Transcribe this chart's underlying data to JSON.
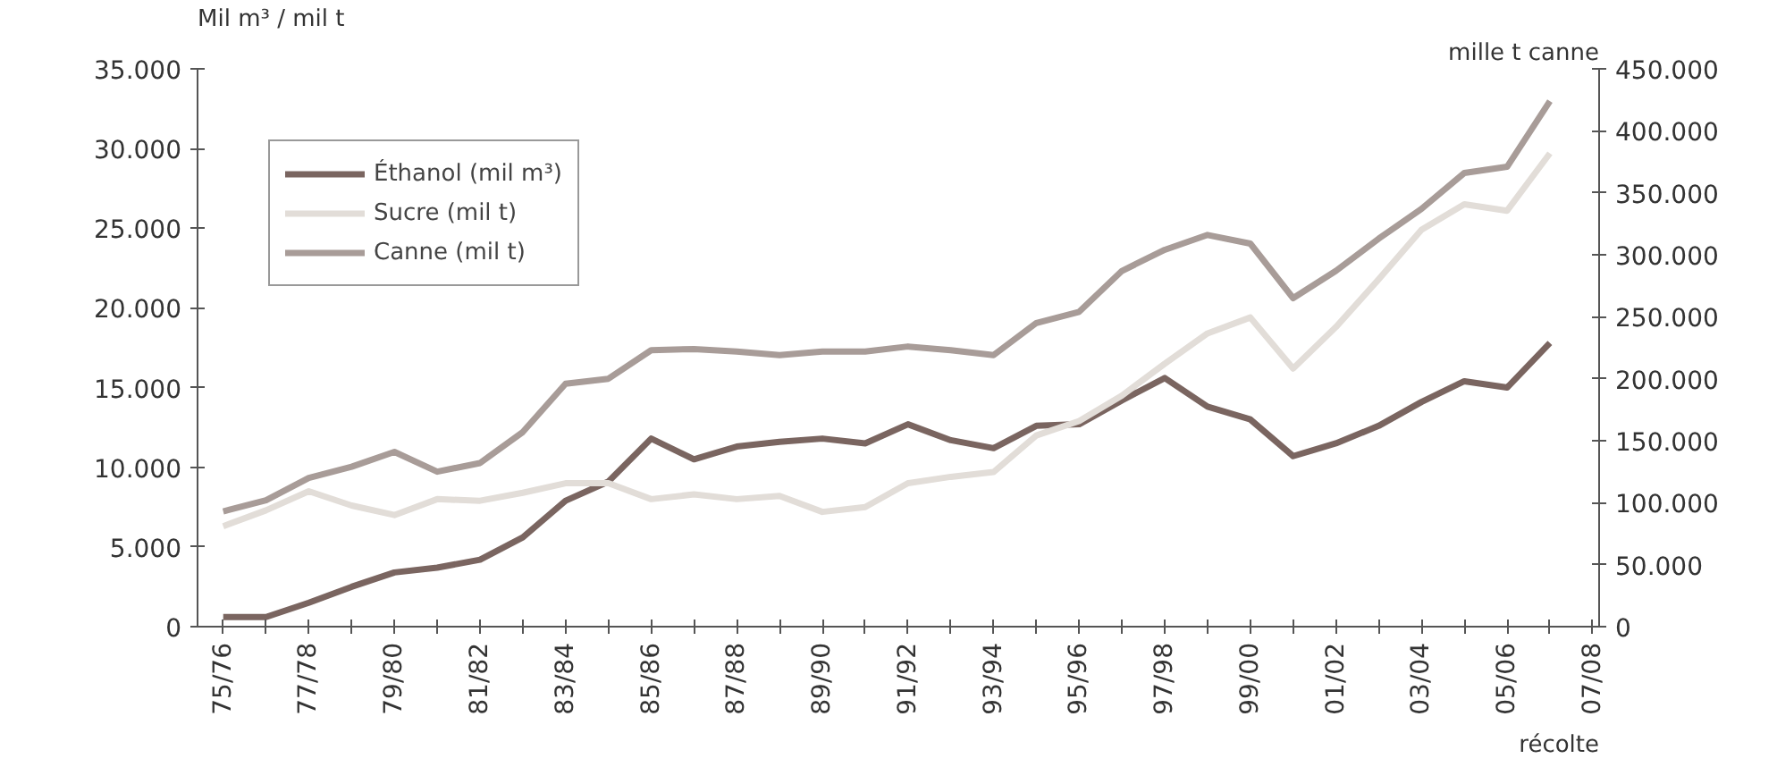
{
  "chart_data": {
    "type": "line",
    "ylabel": "Mil m³ / mil t",
    "y2label": "mille t canne",
    "xlabel": "récolte",
    "categories": [
      "75/76",
      null,
      "77/78",
      null,
      "79/80",
      null,
      "81/82",
      null,
      "83/84",
      null,
      "85/86",
      null,
      "87/88",
      null,
      "89/90",
      null,
      "91/92",
      null,
      "93/94",
      null,
      "95/96",
      null,
      "97/98",
      null,
      "99/00",
      null,
      "01/02",
      null,
      "03/04",
      null,
      "05/06",
      null,
      "07/08"
    ],
    "series": [
      {
        "name": "Éthanol (mil m³)",
        "color": "#7a6560",
        "values": [
          600,
          600,
          1500,
          2500,
          3400,
          3700,
          4200,
          5600,
          7900,
          9100,
          11800,
          10500,
          11300,
          11600,
          11800,
          11500,
          12700,
          11700,
          11200,
          12600,
          12700,
          14200,
          15600,
          13800,
          13000,
          10700,
          11500,
          12600,
          14100,
          15400,
          15000,
          17800,
          null
        ]
      },
      {
        "name": "Sucre (mil t)",
        "color": "#e2ddd8",
        "values": [
          6300,
          7300,
          8500,
          7600,
          7000,
          8000,
          7900,
          8400,
          9000,
          9000,
          8000,
          8300,
          8000,
          8200,
          7200,
          7500,
          9000,
          9400,
          9700,
          12000,
          12900,
          14500,
          16500,
          18400,
          19400,
          16200,
          18800,
          21800,
          24900,
          26500,
          26100,
          29700,
          null
        ]
      },
      {
        "name": "Canne (mil t)",
        "color": "#a89c98",
        "axis": "y2",
        "values": [
          93000,
          102000,
          120000,
          129000,
          141000,
          125000,
          132000,
          157000,
          196000,
          200000,
          223000,
          224000,
          222000,
          219000,
          222000,
          222000,
          226000,
          223000,
          219000,
          245000,
          254000,
          287000,
          304000,
          316000,
          309000,
          265000,
          287000,
          313000,
          337000,
          366000,
          371000,
          424000,
          null
        ]
      }
    ],
    "ylim": [
      0,
      35000
    ],
    "yticks": [
      0,
      {
        "value": 5000,
        "label": "5.000"
      },
      {
        "value": 10000,
        "label": "10.000"
      },
      {
        "value": 15000,
        "label": "15.000"
      },
      {
        "value": 20000,
        "label": "20.000"
      },
      {
        "value": 25000,
        "label": "25.000"
      },
      {
        "value": 30000,
        "label": "30.000"
      },
      {
        "value": 35000,
        "label": "35.000"
      }
    ],
    "y2lim": [
      0,
      450000
    ],
    "y2ticks": [
      0,
      {
        "value": 50000,
        "label": "50.000"
      },
      {
        "value": 100000,
        "label": "100.000"
      },
      {
        "value": 150000,
        "label": "150.000"
      },
      {
        "value": 200000,
        "label": "200.000"
      },
      {
        "value": 250000,
        "label": "250.000"
      },
      {
        "value": 300000,
        "label": "300.000"
      },
      {
        "value": 350000,
        "label": "350.000"
      },
      {
        "value": 400000,
        "label": "400.000"
      },
      {
        "value": 450000,
        "label": "450.000"
      }
    ],
    "legend": "top left",
    "grid": false,
    "marker": "none",
    "line_style": "solid"
  }
}
